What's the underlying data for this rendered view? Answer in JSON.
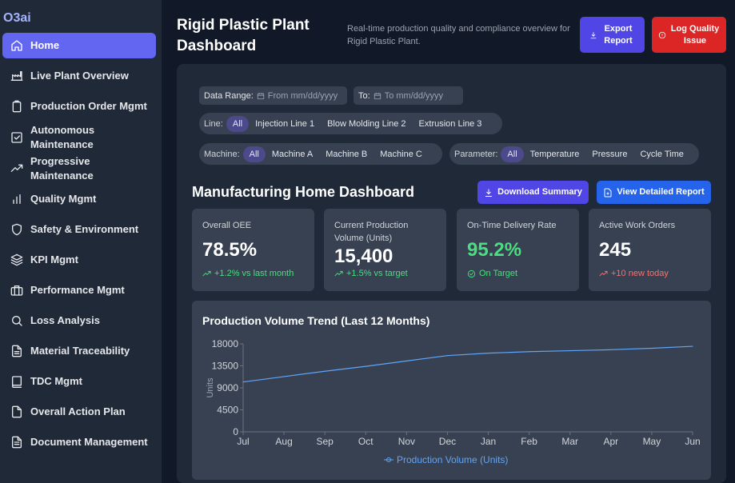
{
  "sidebar": {
    "brand": "O3ai",
    "items": [
      {
        "label": "Home",
        "icon": "home-icon"
      },
      {
        "label": "Live Plant Overview",
        "icon": "factory-icon"
      },
      {
        "label": "Production Order Mgmt",
        "icon": "clipboard-icon"
      },
      {
        "label": "Autonomous Maintenance",
        "icon": "checkbox-icon"
      },
      {
        "label": "Progressive Maintenance",
        "icon": "trend-icon"
      },
      {
        "label": "Quality Mgmt",
        "icon": "bar-chart-icon"
      },
      {
        "label": "Safety & Environment",
        "icon": "shield-icon"
      },
      {
        "label": "KPI Mgmt",
        "icon": "layers-icon"
      },
      {
        "label": "Performance Mgmt",
        "icon": "briefcase-icon"
      },
      {
        "label": "Loss Analysis",
        "icon": "search-icon"
      },
      {
        "label": "Material Traceability",
        "icon": "document-icon"
      },
      {
        "label": "TDC Mgmt",
        "icon": "book-icon"
      },
      {
        "label": "Overall Action Plan",
        "icon": "file-icon"
      },
      {
        "label": "Document Management",
        "icon": "file-text-icon"
      }
    ]
  },
  "header": {
    "title": "Rigid Plastic Plant Dashboard",
    "subtitle": "Real-time production quality and compliance overview for Rigid Plastic Plant.",
    "export_label": "Export Report",
    "log_label": "Log Quality Issue"
  },
  "filters": {
    "date_range_label": "Data Range:",
    "date_from_placeholder": "From mm/dd/yyyy",
    "to_label": "To:",
    "date_to_placeholder": "To mm/dd/yyyy",
    "line": {
      "label": "Line:",
      "options": [
        "All",
        "Injection Line 1",
        "Blow Molding Line 2",
        "Extrusion Line 3"
      ],
      "selected": "All"
    },
    "machine": {
      "label": "Machine:",
      "options": [
        "All",
        "Machine A",
        "Machine B",
        "Machine C"
      ],
      "selected": "All"
    },
    "parameter": {
      "label": "Parameter:",
      "options": [
        "All",
        "Temperature",
        "Pressure",
        "Cycle Time"
      ],
      "selected": "All"
    }
  },
  "dashboard": {
    "title": "Manufacturing Home Dashboard",
    "download_label": "Download Summary",
    "view_label": "View Detailed Report"
  },
  "kpis": [
    {
      "label": "Overall OEE",
      "value": "78.5%",
      "trend": "+1.2% vs last month",
      "status": "up"
    },
    {
      "label": "Current Production Volume (Units)",
      "value": "15,400",
      "trend": "+1.5% vs target",
      "status": "up"
    },
    {
      "label": "On-Time Delivery Rate",
      "value": "95.2%",
      "trend": "On Target",
      "status": "ok"
    },
    {
      "label": "Active Work Orders",
      "value": "245",
      "trend": "+10 new today",
      "status": "warn"
    }
  ],
  "colors": {
    "accent": "#6366f1",
    "danger": "#dc2626",
    "primary": "#2563eb",
    "success": "#4ade80",
    "line": "#60a5fa"
  },
  "chart_data": {
    "type": "line",
    "title": "Production Volume Trend (Last 12 Months)",
    "categories": [
      "Jul",
      "Aug",
      "Sep",
      "Oct",
      "Nov",
      "Dec",
      "Jan",
      "Feb",
      "Mar",
      "Apr",
      "May",
      "Jun"
    ],
    "series": [
      {
        "name": "Production Volume (Units)",
        "values": [
          10200,
          11300,
          12400,
          13400,
          14500,
          15600,
          16100,
          16400,
          16600,
          16800,
          17100,
          17500
        ]
      }
    ],
    "ylabel": "Units",
    "xlabel": "",
    "yticks": [
      0,
      4500,
      9000,
      13500,
      18000
    ],
    "ylim": [
      0,
      18000
    ],
    "grid": false,
    "legend": "bottom"
  }
}
